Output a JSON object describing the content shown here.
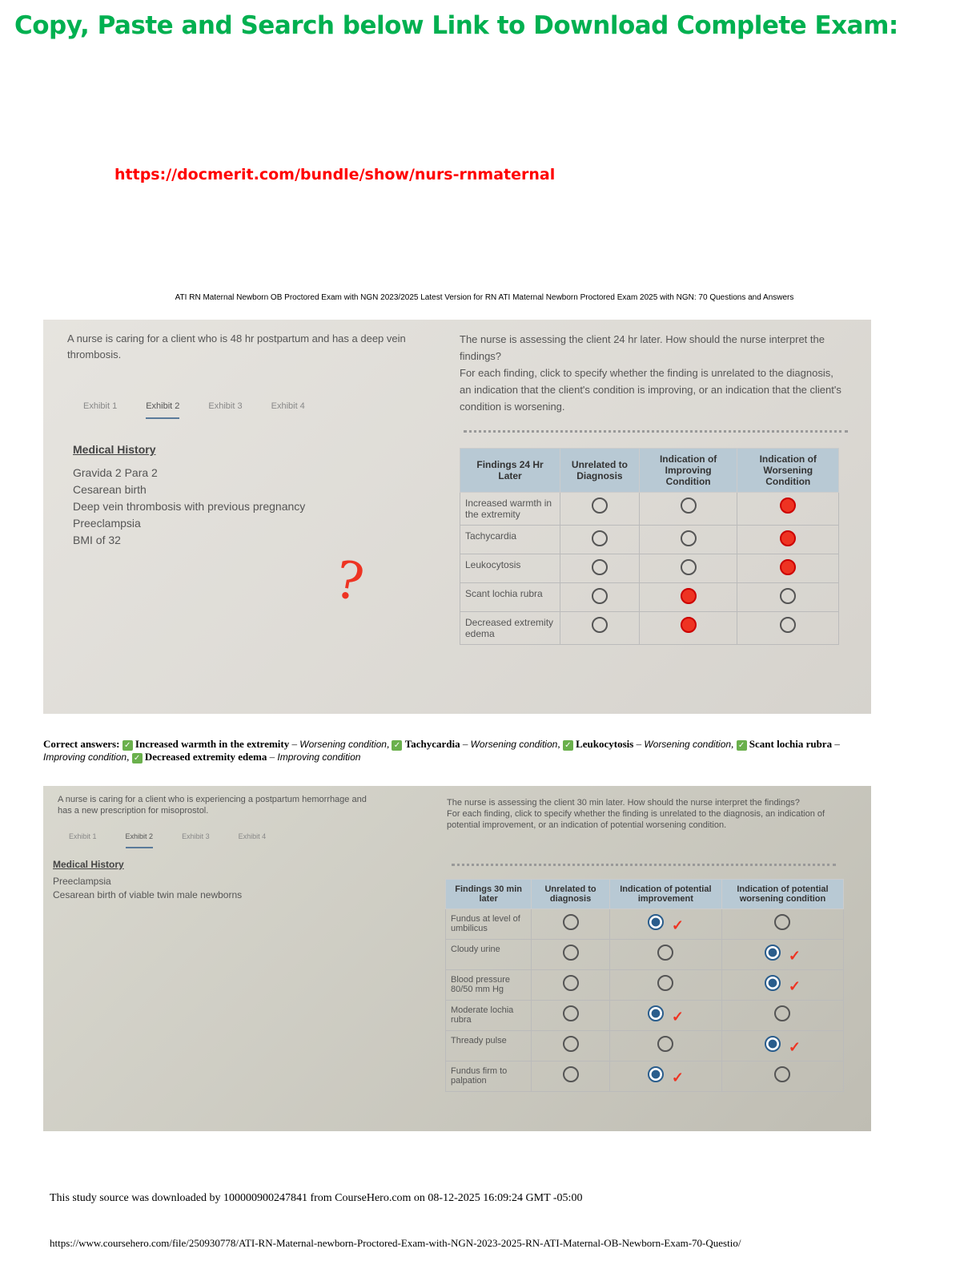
{
  "header": {
    "title": "Copy, Paste and Search below Link to Download Complete Exam:",
    "link": "https://docmerit.com/bundle/show/nurs-rnmaternal",
    "subtitle": "ATI RN Maternal Newborn OB Proctored Exam with NGN 2023/2025 Latest Version for RN ATI Maternal Newborn Proctored Exam 2025 with NGN: 70 Questions and Answers"
  },
  "q1": {
    "scenario": "A nurse is caring for a client who is 48 hr postpartum and has a deep vein thrombosis.",
    "tabs": [
      "Exhibit 1",
      "Exhibit 2",
      "Exhibit 3",
      "Exhibit 4"
    ],
    "history_title": "Medical History",
    "history": [
      "Gravida 2 Para 2",
      "Cesarean birth",
      "Deep vein thrombosis with previous pregnancy",
      "Preeclampsia",
      "BMI of 32"
    ],
    "annotation": "?",
    "prompt": "The nurse is assessing the client 24 hr later. How should the nurse interpret the findings?",
    "instructions": "For each finding, click to specify whether the finding is unrelated to the diagnosis, an indication that the client's condition is improving, or an indication that the client's condition is worsening.",
    "columns": [
      "Findings 24 Hr Later",
      "Unrelated to Diagnosis",
      "Indication of Improving Condition",
      "Indication of Worsening Condition"
    ],
    "rows": [
      {
        "finding": "Increased warmth in the extremity",
        "selected": 2
      },
      {
        "finding": "Tachycardia",
        "selected": 2
      },
      {
        "finding": "Leukocytosis",
        "selected": 2
      },
      {
        "finding": "Scant lochia rubra",
        "selected": 1
      },
      {
        "finding": "Decreased extremity edema",
        "selected": 1
      }
    ]
  },
  "answers": {
    "label": "Correct answers:",
    "items": [
      {
        "finding": "Increased warmth in the extremity",
        "result": "Worsening condition"
      },
      {
        "finding": "Tachycardia",
        "result": "Worsening condition"
      },
      {
        "finding": "Leukocytosis",
        "result": "Worsening condition"
      },
      {
        "finding": "Scant lochia rubra",
        "result": "Improving condition"
      },
      {
        "finding": "Decreased extremity edema",
        "result": "Improving condition"
      }
    ],
    "check": "✓"
  },
  "q2": {
    "scenario": "A nurse is caring for a client who is experiencing a postpartum hemorrhage and has a new prescription for misoprostol.",
    "tabs": [
      "Exhibit 1",
      "Exhibit 2",
      "Exhibit 3",
      "Exhibit 4"
    ],
    "history_title": "Medical History",
    "history": [
      "Preeclampsia",
      "Cesarean birth of viable twin male newborns"
    ],
    "prompt": "The nurse is assessing the client 30 min later. How should the nurse interpret the findings?",
    "instructions": "For each finding, click to specify whether the finding is unrelated to the diagnosis, an indication of potential improvement, or an indication of potential worsening condition.",
    "columns": [
      "Findings 30 min later",
      "Unrelated to diagnosis",
      "Indication of potential improvement",
      "Indication of potential worsening condition"
    ],
    "rows": [
      {
        "finding": "Fundus at level of umbilicus",
        "selected": 1
      },
      {
        "finding": "Cloudy urine",
        "selected": 2
      },
      {
        "finding": "Blood pressure 80/50 mm Hg",
        "selected": 2
      },
      {
        "finding": "Moderate lochia rubra",
        "selected": 1
      },
      {
        "finding": "Thready pulse",
        "selected": 2
      },
      {
        "finding": "Fundus firm to palpation",
        "selected": 1
      }
    ]
  },
  "footer": {
    "source": "This study source was downloaded by 100000900247841 from CourseHero.com on 08-12-2025 16:09:24 GMT -05:00",
    "url": "https://www.coursehero.com/file/250930778/ATI-RN-Maternal-newborn-Proctored-Exam-with-NGN-2023-2025-RN-ATI-Maternal-OB-Newborn-Exam-70-Questio/"
  }
}
